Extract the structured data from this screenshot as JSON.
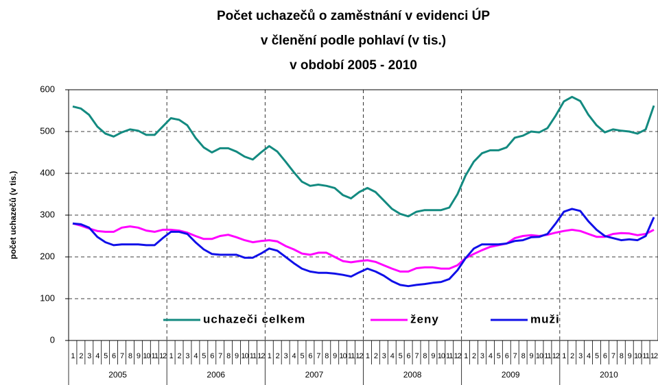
{
  "chart_data": {
    "type": "line",
    "title": [
      "Počet uchazečů o zaměstnání v evidenci ÚP",
      "v členění podle pohlaví (v tis.)",
      "v období 2005 - 2010"
    ],
    "y_label": "počet uchazečů (v tis.)",
    "categories": [
      "1",
      "2",
      "3",
      "4",
      "5",
      "6",
      "7",
      "8",
      "9",
      "10",
      "11",
      "12",
      "1",
      "2",
      "3",
      "4",
      "5",
      "6",
      "7",
      "8",
      "9",
      "10",
      "11",
      "12",
      "1",
      "2",
      "3",
      "4",
      "5",
      "6",
      "7",
      "8",
      "9",
      "10",
      "11",
      "12",
      "1",
      "2",
      "3",
      "4",
      "5",
      "6",
      "7",
      "8",
      "9",
      "10",
      "11",
      "12",
      "1",
      "2",
      "3",
      "4",
      "5",
      "6",
      "7",
      "8",
      "9",
      "10",
      "11",
      "12",
      "1",
      "2",
      "3",
      "4",
      "5",
      "6",
      "7",
      "8",
      "9",
      "10",
      "11",
      "12"
    ],
    "years": [
      "2005",
      "2006",
      "2007",
      "2008",
      "2009",
      "2010"
    ],
    "series": [
      {
        "name": "uchazeči celkem",
        "color": "#138a80",
        "values": [
          560,
          555,
          540,
          512,
          495,
          488,
          498,
          505,
          502,
          492,
          492,
          512,
          532,
          528,
          515,
          485,
          462,
          450,
          460,
          460,
          452,
          440,
          433,
          450,
          465,
          452,
          428,
          403,
          380,
          370,
          373,
          370,
          365,
          348,
          340,
          355,
          365,
          355,
          335,
          315,
          303,
          297,
          308,
          312,
          312,
          312,
          318,
          350,
          395,
          428,
          448,
          455,
          455,
          462,
          485,
          490,
          500,
          498,
          508,
          538,
          572,
          583,
          573,
          540,
          515,
          498,
          505,
          502,
          500,
          495,
          505,
          562
        ]
      },
      {
        "name": "ženy",
        "color": "#ff00ff",
        "values": [
          280,
          275,
          268,
          262,
          260,
          260,
          270,
          273,
          270,
          263,
          260,
          265,
          265,
          263,
          258,
          250,
          243,
          243,
          250,
          253,
          247,
          240,
          235,
          238,
          240,
          237,
          226,
          218,
          208,
          205,
          210,
          210,
          200,
          190,
          187,
          190,
          192,
          188,
          180,
          172,
          165,
          165,
          173,
          175,
          175,
          172,
          172,
          180,
          197,
          207,
          216,
          224,
          228,
          232,
          245,
          250,
          252,
          250,
          253,
          258,
          262,
          265,
          262,
          255,
          248,
          248,
          255,
          257,
          256,
          252,
          255,
          265
        ]
      },
      {
        "name": "muži",
        "color": "#1010e8",
        "values": [
          280,
          278,
          270,
          248,
          235,
          228,
          230,
          230,
          230,
          228,
          228,
          245,
          260,
          260,
          255,
          235,
          218,
          207,
          205,
          205,
          205,
          198,
          198,
          208,
          220,
          215,
          200,
          185,
          172,
          165,
          162,
          162,
          160,
          157,
          153,
          163,
          172,
          165,
          155,
          142,
          133,
          130,
          133,
          135,
          138,
          140,
          147,
          168,
          197,
          220,
          230,
          230,
          230,
          232,
          238,
          240,
          247,
          248,
          255,
          280,
          308,
          315,
          310,
          285,
          265,
          250,
          245,
          240,
          242,
          240,
          250,
          295
        ]
      }
    ],
    "ylim": [
      0,
      600
    ],
    "yticks": [
      0,
      100,
      200,
      300,
      400,
      500,
      600
    ],
    "grid": true
  }
}
